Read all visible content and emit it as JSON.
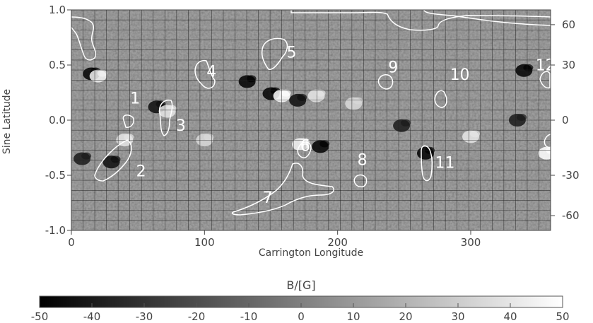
{
  "chart_data": {
    "type": "heatmap",
    "xlabel": "Carrington Longitude",
    "ylabel": "Sine Latitude",
    "xlim": [
      0,
      360
    ],
    "ylim": [
      -1,
      1
    ],
    "x_ticks": [
      "0",
      "100",
      "200",
      "300"
    ],
    "x_tick_values": [
      0,
      100,
      200,
      300
    ],
    "y_ticks": [
      "1.0",
      "0.5",
      "0.0",
      "-0.5",
      "-1.0"
    ],
    "y_tick_values": [
      1.0,
      0.5,
      0.0,
      -0.5,
      -1.0
    ],
    "right_ticks": [
      "60",
      "30",
      "0",
      "-30",
      "-60"
    ],
    "right_tick_values": [
      60,
      30,
      0,
      -30,
      -60
    ],
    "grid": true,
    "colormap": "grayscale",
    "colorbar": {
      "title": "B/[G]",
      "range": [
        -50,
        50
      ],
      "ticks": [
        "-50",
        "-40",
        "-30",
        "-20",
        "-10",
        "0",
        "10",
        "20",
        "30",
        "40",
        "50"
      ],
      "tick_values": [
        -50,
        -40,
        -30,
        -20,
        -10,
        0,
        10,
        20,
        30,
        40,
        50
      ]
    },
    "regions": [
      {
        "label": "1",
        "lon": 42,
        "sinlat": 0.06,
        "polarity": "contour"
      },
      {
        "label": "2",
        "lon": 37,
        "sinlat": -0.42,
        "polarity": "contour"
      },
      {
        "label": "3",
        "lon": 70,
        "sinlat": 0.02,
        "polarity": "contour"
      },
      {
        "label": "4",
        "lon": 92,
        "sinlat": 0.38,
        "polarity": "contour"
      },
      {
        "label": "5",
        "lon": 150,
        "sinlat": 0.58,
        "polarity": "contour"
      },
      {
        "label": "6",
        "lon": 174,
        "sinlat": -0.28,
        "polarity": "contour"
      },
      {
        "label": "7",
        "lon": 165,
        "sinlat": -0.66,
        "polarity": "contour"
      },
      {
        "label": "8",
        "lon": 218,
        "sinlat": -0.47,
        "polarity": "contour"
      },
      {
        "label": "9",
        "lon": 238,
        "sinlat": 0.38,
        "polarity": "contour"
      },
      {
        "label": "10",
        "lon": 278,
        "sinlat": 0.25,
        "polarity": "contour"
      },
      {
        "label": "11",
        "lon": 270,
        "sinlat": -0.38,
        "polarity": "contour"
      },
      {
        "label": "12",
        "lon": 354,
        "sinlat": 0.4,
        "polarity": "contour"
      }
    ],
    "flux_patches": [
      {
        "lon": 15,
        "sinlat": 0.42,
        "value": -50
      },
      {
        "lon": 20,
        "sinlat": 0.4,
        "value": 45
      },
      {
        "lon": 64,
        "sinlat": 0.12,
        "value": -45
      },
      {
        "lon": 72,
        "sinlat": 0.08,
        "value": 40
      },
      {
        "lon": 132,
        "sinlat": 0.35,
        "value": -50
      },
      {
        "lon": 150,
        "sinlat": 0.24,
        "value": -50
      },
      {
        "lon": 158,
        "sinlat": 0.22,
        "value": 50
      },
      {
        "lon": 170,
        "sinlat": 0.18,
        "value": -45
      },
      {
        "lon": 184,
        "sinlat": 0.22,
        "value": 40
      },
      {
        "lon": 212,
        "sinlat": 0.15,
        "value": 35
      },
      {
        "lon": 187,
        "sinlat": -0.24,
        "value": -50
      },
      {
        "lon": 172,
        "sinlat": -0.22,
        "value": 45
      },
      {
        "lon": 30,
        "sinlat": -0.38,
        "value": -45
      },
      {
        "lon": 40,
        "sinlat": -0.18,
        "value": 40
      },
      {
        "lon": 248,
        "sinlat": -0.05,
        "value": -40
      },
      {
        "lon": 266,
        "sinlat": -0.3,
        "value": -50
      },
      {
        "lon": 300,
        "sinlat": -0.15,
        "value": 40
      },
      {
        "lon": 340,
        "sinlat": 0.45,
        "value": -50
      },
      {
        "lon": 357,
        "sinlat": -0.3,
        "value": 50
      },
      {
        "lon": 335,
        "sinlat": 0.0,
        "value": -40
      },
      {
        "lon": 100,
        "sinlat": -0.18,
        "value": 35
      },
      {
        "lon": 8,
        "sinlat": -0.35,
        "value": -40
      }
    ]
  }
}
